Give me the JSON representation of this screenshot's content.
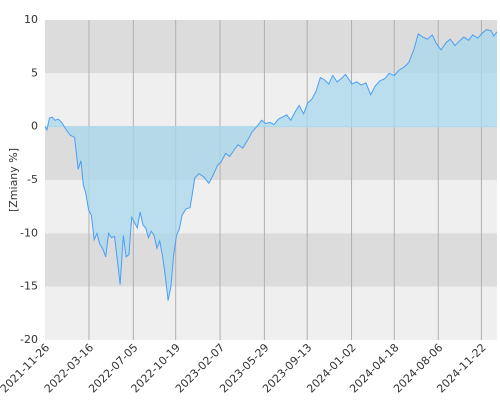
{
  "chart_data": {
    "type": "area",
    "ylabel": "[Zmiany %]",
    "xlabel": "",
    "title": "",
    "ylim": [
      -20,
      10
    ],
    "yticks": [
      10,
      5,
      0,
      -5,
      -10,
      -15,
      -20
    ],
    "x_start": "2021-11-26",
    "x_end": "2024-12-31",
    "xtick_labels": [
      "2021-11-26",
      "2022-03-16",
      "2022-07-05",
      "2022-10-19",
      "2023-02-07",
      "2023-05-29",
      "2023-09-13",
      "2024-01-02",
      "2024-04-18",
      "2024-08-06",
      "2024-11-22"
    ],
    "grid": "vertical lines at x ticks; horizontal bands alternating grey",
    "colors": {
      "line": "#4a9ff5",
      "fill": "#a8d8ec",
      "band_dark": "#dcdcdc",
      "band_light": "#efefef"
    },
    "series": [
      {
        "x": [
          "2021-11-26",
          "2021-12-01",
          "2021-12-07",
          "2021-12-14",
          "2021-12-21",
          "2021-12-29",
          "2022-01-07",
          "2022-01-18",
          "2022-01-28",
          "2022-02-08",
          "2022-02-17",
          "2022-02-24",
          "2022-03-02",
          "2022-03-08",
          "2022-03-15",
          "2022-03-22",
          "2022-03-29",
          "2022-04-05",
          "2022-04-12",
          "2022-04-20",
          "2022-04-27",
          "2022-05-04",
          "2022-05-11",
          "2022-05-19",
          "2022-05-26",
          "2022-06-02",
          "2022-06-10",
          "2022-06-17",
          "2022-06-24",
          "2022-07-01",
          "2022-07-08",
          "2022-07-15",
          "2022-07-22",
          "2022-07-29",
          "2022-08-05",
          "2022-08-12",
          "2022-08-19",
          "2022-08-26",
          "2022-09-02",
          "2022-09-09",
          "2022-09-16",
          "2022-09-23",
          "2022-09-30",
          "2022-10-07",
          "2022-10-14",
          "2022-10-21",
          "2022-10-28",
          "2022-11-04",
          "2022-11-14",
          "2022-11-24",
          "2022-12-06",
          "2022-12-16",
          "2022-12-28",
          "2023-01-10",
          "2023-01-20",
          "2023-02-01",
          "2023-02-10",
          "2023-02-21",
          "2023-03-03",
          "2023-03-14",
          "2023-03-24",
          "2023-04-05",
          "2023-04-18",
          "2023-04-28",
          "2023-05-10",
          "2023-05-22",
          "2023-06-01",
          "2023-06-12",
          "2023-06-22",
          "2023-07-03",
          "2023-07-13",
          "2023-07-24",
          "2023-08-03",
          "2023-08-14",
          "2023-08-24",
          "2023-09-04",
          "2023-09-14",
          "2023-09-25",
          "2023-10-05",
          "2023-10-16",
          "2023-10-26",
          "2023-11-06",
          "2023-11-16",
          "2023-11-27",
          "2023-12-07",
          "2023-12-18",
          "2024-01-03",
          "2024-01-15",
          "2024-01-26",
          "2024-02-07",
          "2024-02-19",
          "2024-03-01",
          "2024-03-13",
          "2024-03-25",
          "2024-04-05",
          "2024-04-18",
          "2024-04-30",
          "2024-05-13",
          "2024-05-24",
          "2024-06-05",
          "2024-06-17",
          "2024-06-28",
          "2024-07-10",
          "2024-07-22",
          "2024-08-01",
          "2024-08-13",
          "2024-08-26",
          "2024-09-05",
          "2024-09-17",
          "2024-09-27",
          "2024-10-09",
          "2024-10-21",
          "2024-10-31",
          "2024-11-13",
          "2024-11-25",
          "2024-12-05",
          "2024-12-16",
          "2024-12-23",
          "2024-12-31"
        ],
        "values": [
          0.0,
          -0.3,
          0.8,
          0.9,
          0.6,
          0.7,
          0.4,
          -0.3,
          -0.8,
          -1.0,
          -4.0,
          -3.2,
          -5.5,
          -6.2,
          -7.8,
          -8.3,
          -10.6,
          -10.0,
          -11.0,
          -11.5,
          -12.2,
          -10.0,
          -10.4,
          -10.3,
          -12.5,
          -14.8,
          -10.2,
          -12.2,
          -12.0,
          -8.5,
          -9.0,
          -9.5,
          -8.0,
          -9.2,
          -9.5,
          -10.4,
          -9.8,
          -10.2,
          -11.4,
          -10.7,
          -12.1,
          -14.0,
          -16.3,
          -15.0,
          -12.0,
          -10.2,
          -9.6,
          -8.3,
          -7.7,
          -7.6,
          -4.8,
          -4.4,
          -4.7,
          -5.3,
          -4.6,
          -3.6,
          -3.3,
          -2.5,
          -2.8,
          -2.2,
          -1.7,
          -2.0,
          -1.2,
          -0.5,
          0.0,
          0.6,
          0.3,
          0.4,
          0.2,
          0.7,
          0.9,
          1.1,
          0.6,
          1.4,
          2.0,
          1.2,
          2.2,
          2.6,
          3.3,
          4.6,
          4.4,
          4.0,
          4.8,
          4.2,
          4.5,
          4.9,
          4.0,
          4.2,
          3.9,
          4.1,
          3.0,
          3.8,
          4.3,
          4.5,
          5.0,
          4.8,
          5.3,
          5.6,
          6.0,
          7.1,
          8.7,
          8.4,
          8.2,
          8.6,
          7.8,
          7.2,
          7.9,
          8.2,
          7.6,
          8.0,
          8.4,
          8.1,
          8.6,
          8.3,
          8.8,
          9.1,
          9.0,
          8.5,
          8.9
        ]
      }
    ]
  }
}
